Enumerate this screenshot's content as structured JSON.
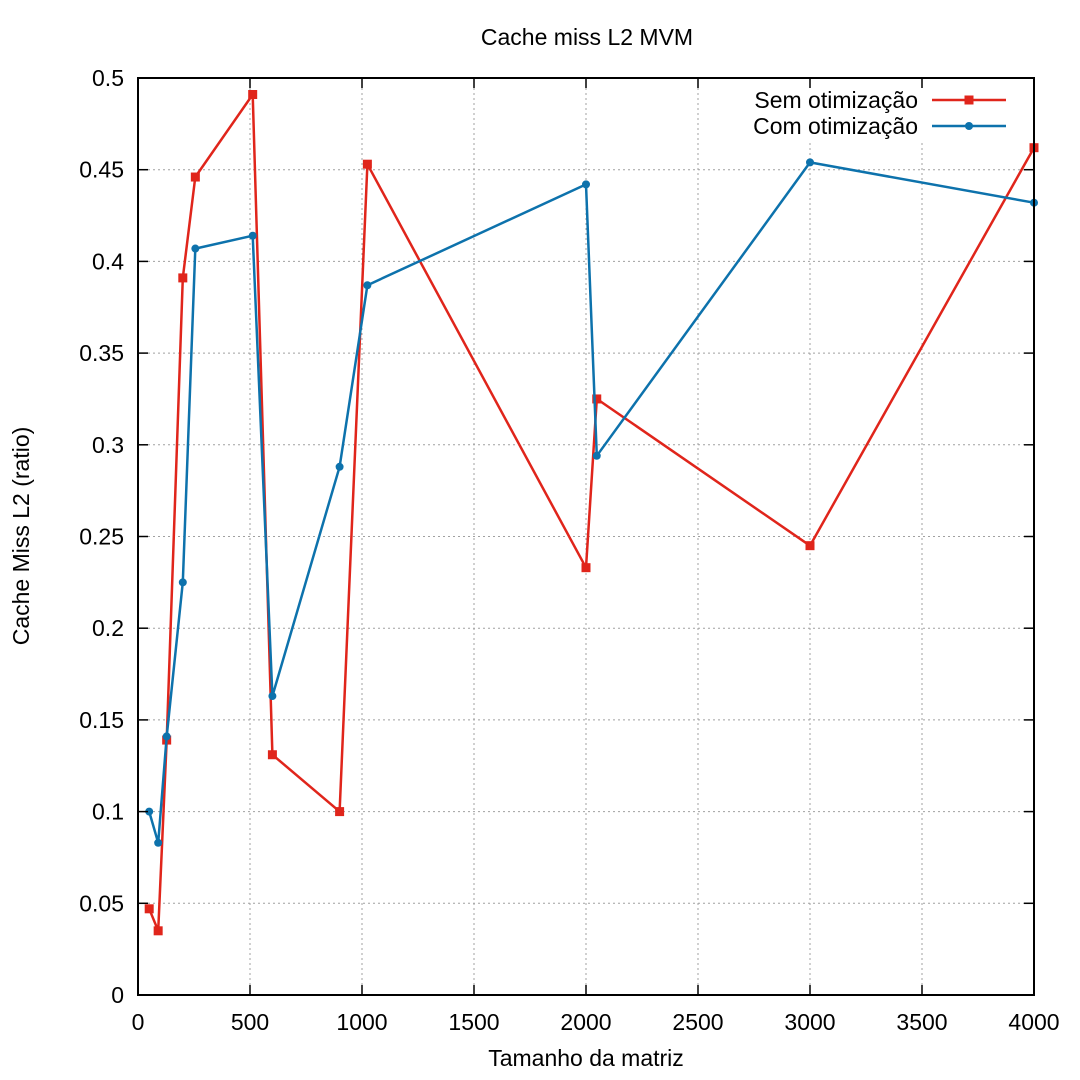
{
  "chart_data": {
    "type": "line",
    "title": "Cache miss L2 MVM",
    "xlabel": "Tamanho da matriz",
    "ylabel": "Cache Miss L2 (ratio)",
    "xlim": [
      0,
      4000
    ],
    "ylim": [
      0,
      0.5
    ],
    "xticks": [
      0,
      500,
      1000,
      1500,
      2000,
      2500,
      3000,
      3500,
      4000
    ],
    "xtick_labels": [
      "0",
      "500",
      "1000",
      "1500",
      "2000",
      "2500",
      "3000",
      "3500",
      "4000"
    ],
    "yticks": [
      0,
      0.05,
      0.1,
      0.15,
      0.2,
      0.25,
      0.3,
      0.35,
      0.4,
      0.45,
      0.5
    ],
    "ytick_labels": [
      "0",
      "0.05",
      "0.1",
      "0.15",
      "0.2",
      "0.25",
      "0.3",
      "0.35",
      "0.4",
      "0.45",
      "0.5"
    ],
    "grid": true,
    "legend_position": "top-right",
    "series": [
      {
        "name": "Sem otimização",
        "color": "#e0251b",
        "marker": "square",
        "x": [
          50,
          90,
          128,
          200,
          256,
          512,
          600,
          900,
          1024,
          2000,
          2048,
          3000,
          4000
        ],
        "y": [
          0.047,
          0.035,
          0.139,
          0.391,
          0.446,
          0.491,
          0.131,
          0.1,
          0.453,
          0.233,
          0.325,
          0.245,
          0.462
        ]
      },
      {
        "name": "Com otimização",
        "color": "#0d72ac",
        "marker": "circle",
        "x": [
          50,
          90,
          128,
          200,
          256,
          512,
          600,
          900,
          1024,
          2000,
          2048,
          3000,
          4000
        ],
        "y": [
          0.1,
          0.083,
          0.141,
          0.225,
          0.407,
          0.414,
          0.163,
          0.288,
          0.387,
          0.442,
          0.294,
          0.454,
          0.432
        ]
      }
    ]
  }
}
